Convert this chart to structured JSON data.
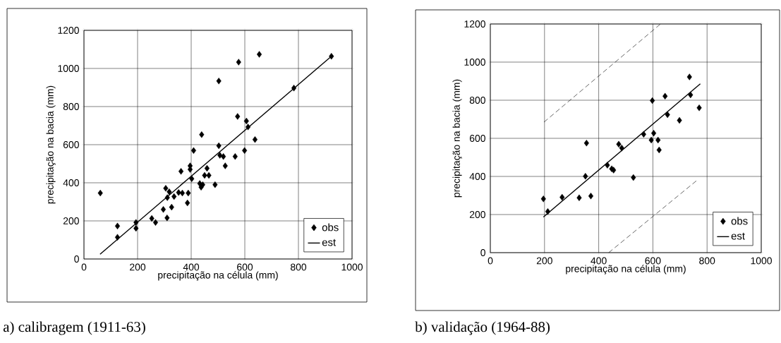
{
  "chart_data": [
    {
      "type": "scatter",
      "title": "a) calibragem (1911-63)",
      "xlabel": "precipitação na célula (mm)",
      "ylabel": "precipitação na bacia (mm)",
      "xlim": [
        0,
        1000
      ],
      "ylim": [
        0,
        1200
      ],
      "xticks": [
        0,
        200,
        400,
        600,
        800,
        1000
      ],
      "yticks": [
        0,
        200,
        400,
        600,
        800,
        1000,
        1200
      ],
      "grid": true,
      "legend": "bottom right",
      "series": [
        {
          "name": "obs",
          "marker": "diamond",
          "color": "#000000",
          "x": [
            61,
            125,
            125,
            194,
            194,
            253,
            267,
            296,
            310,
            305,
            318,
            311,
            327,
            336,
            353,
            362,
            367,
            389,
            386,
            396,
            396,
            409,
            402,
            432,
            437,
            439,
            443,
            450,
            459,
            466,
            489,
            503,
            503,
            507,
            527,
            520,
            564,
            573,
            577,
            599,
            606,
            612,
            638,
            654,
            783,
            923
          ],
          "values": [
            346,
            173,
            114,
            192,
            161,
            213,
            192,
            260,
            216,
            371,
            353,
            322,
            272,
            328,
            349,
            460,
            346,
            346,
            294,
            489,
            470,
            569,
            421,
            396,
            377,
            653,
            390,
            439,
            476,
            439,
            390,
            594,
            934,
            544,
            489,
            538,
            538,
            748,
            1033,
            569,
            724,
            693,
            627,
            1074,
            897,
            1064
          ]
        },
        {
          "name": "est",
          "type": "line",
          "marker": "none",
          "color": "#000000",
          "x": [
            60,
            923
          ],
          "values": [
            25,
            1064
          ]
        }
      ]
    },
    {
      "type": "scatter",
      "title": "b) validação (1964-88)",
      "xlabel": "precipitação na célula (mm)",
      "ylabel": "precipitação na bacia (mm)",
      "xlim": [
        0,
        1000
      ],
      "ylim": [
        0,
        1200
      ],
      "xticks": [
        0,
        200,
        400,
        600,
        800,
        1000
      ],
      "yticks": [
        0,
        200,
        400,
        600,
        800,
        1000,
        1200
      ],
      "grid": true,
      "legend": "bottom right",
      "series": [
        {
          "name": "obs",
          "marker": "diamond",
          "color": "#000000",
          "x": [
            196,
            212,
            265,
            328,
            351,
            355,
            371,
            432,
            448,
            455,
            474,
            485,
            528,
            566,
            598,
            594,
            603,
            619,
            623,
            645,
            654,
            698,
            735,
            739,
            771
          ],
          "values": [
            282,
            216,
            291,
            288,
            401,
            575,
            297,
            459,
            440,
            433,
            569,
            549,
            394,
            621,
            798,
            591,
            627,
            591,
            539,
            821,
            724,
            694,
            922,
            828,
            760
          ]
        },
        {
          "name": "est",
          "type": "line",
          "marker": "none",
          "color": "#000000",
          "x": [
            196,
            775
          ],
          "values": [
            187,
            886
          ]
        },
        {
          "type": "line",
          "marker": "none",
          "color": "#000000",
          "line_style": "dashed",
          "x": [
            198,
            628
          ],
          "values": [
            685,
            1200
          ]
        },
        {
          "type": "line",
          "marker": "none",
          "color": "#000000",
          "line_style": "dashed",
          "x": [
            437,
            764
          ],
          "values": [
            0,
            381
          ]
        }
      ]
    }
  ]
}
